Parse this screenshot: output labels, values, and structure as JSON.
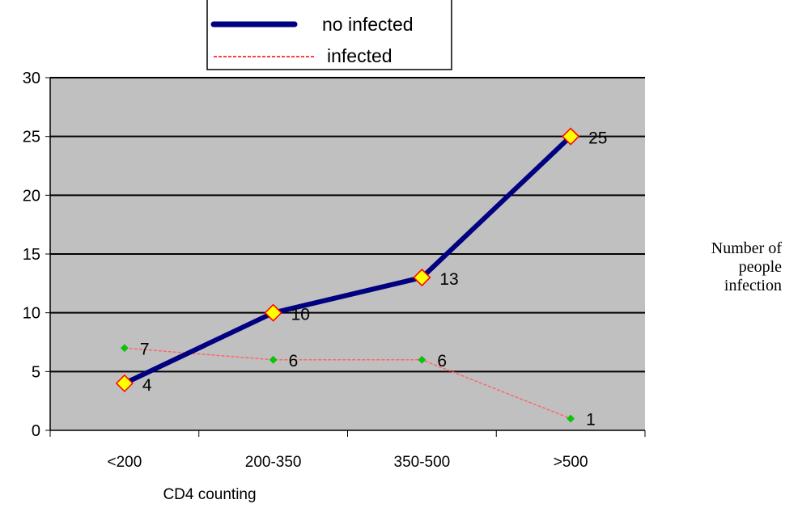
{
  "chart_data": {
    "type": "line",
    "categories": [
      "<200",
      "200-350",
      "350-500",
      ">500"
    ],
    "series": [
      {
        "name": "no infected",
        "values": [
          4,
          10,
          13,
          25
        ],
        "data_labels": [
          "4",
          "10",
          "13",
          "25"
        ],
        "color": "#000080",
        "marker_fill": "#ffff00",
        "marker_stroke": "#ff0000",
        "style": "solid"
      },
      {
        "name": "infected",
        "values": [
          7,
          6,
          6,
          1
        ],
        "data_labels": [
          "7",
          "6",
          "6",
          "1"
        ],
        "color": "#ff6666",
        "marker_fill": "#00cc00",
        "style": "dashed"
      }
    ],
    "title": "",
    "xlabel": "CD4 counting",
    "ylabel": "",
    "ylim": [
      0,
      30
    ],
    "yticks": [
      "0",
      "5",
      "10",
      "15",
      "20",
      "25",
      "30"
    ],
    "grid": true,
    "legend_position": "top",
    "plot_background": "#c0c0c0"
  },
  "side_label": {
    "line1": "Number of",
    "line2": "people",
    "line3": "infection"
  }
}
